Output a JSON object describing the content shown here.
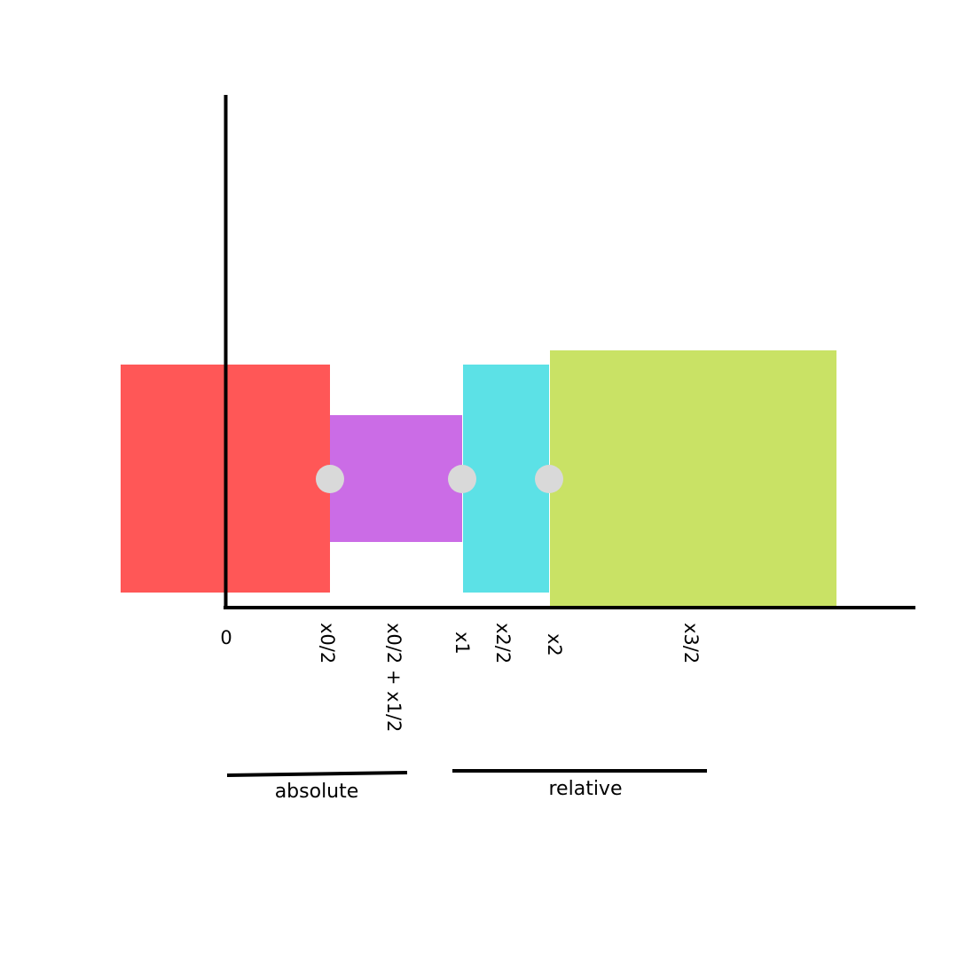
{
  "colors": {
    "block_red": "#ff5757",
    "block_purple": "#cb6ce6",
    "block_cyan": "#5ce1e6",
    "block_green": "#c9e265",
    "joint": "#d9d9d9",
    "axis": "#000000"
  },
  "axis_labels": {
    "origin": "0",
    "x0_half": "x0/2",
    "x0_half_plus_x1_half": "x0/2 + x1/2",
    "x1": "x1",
    "x2_half": "x2/2",
    "x2": "x2",
    "x3_half": "x3/2"
  },
  "groups": {
    "absolute": "absolute",
    "relative": "relative"
  }
}
